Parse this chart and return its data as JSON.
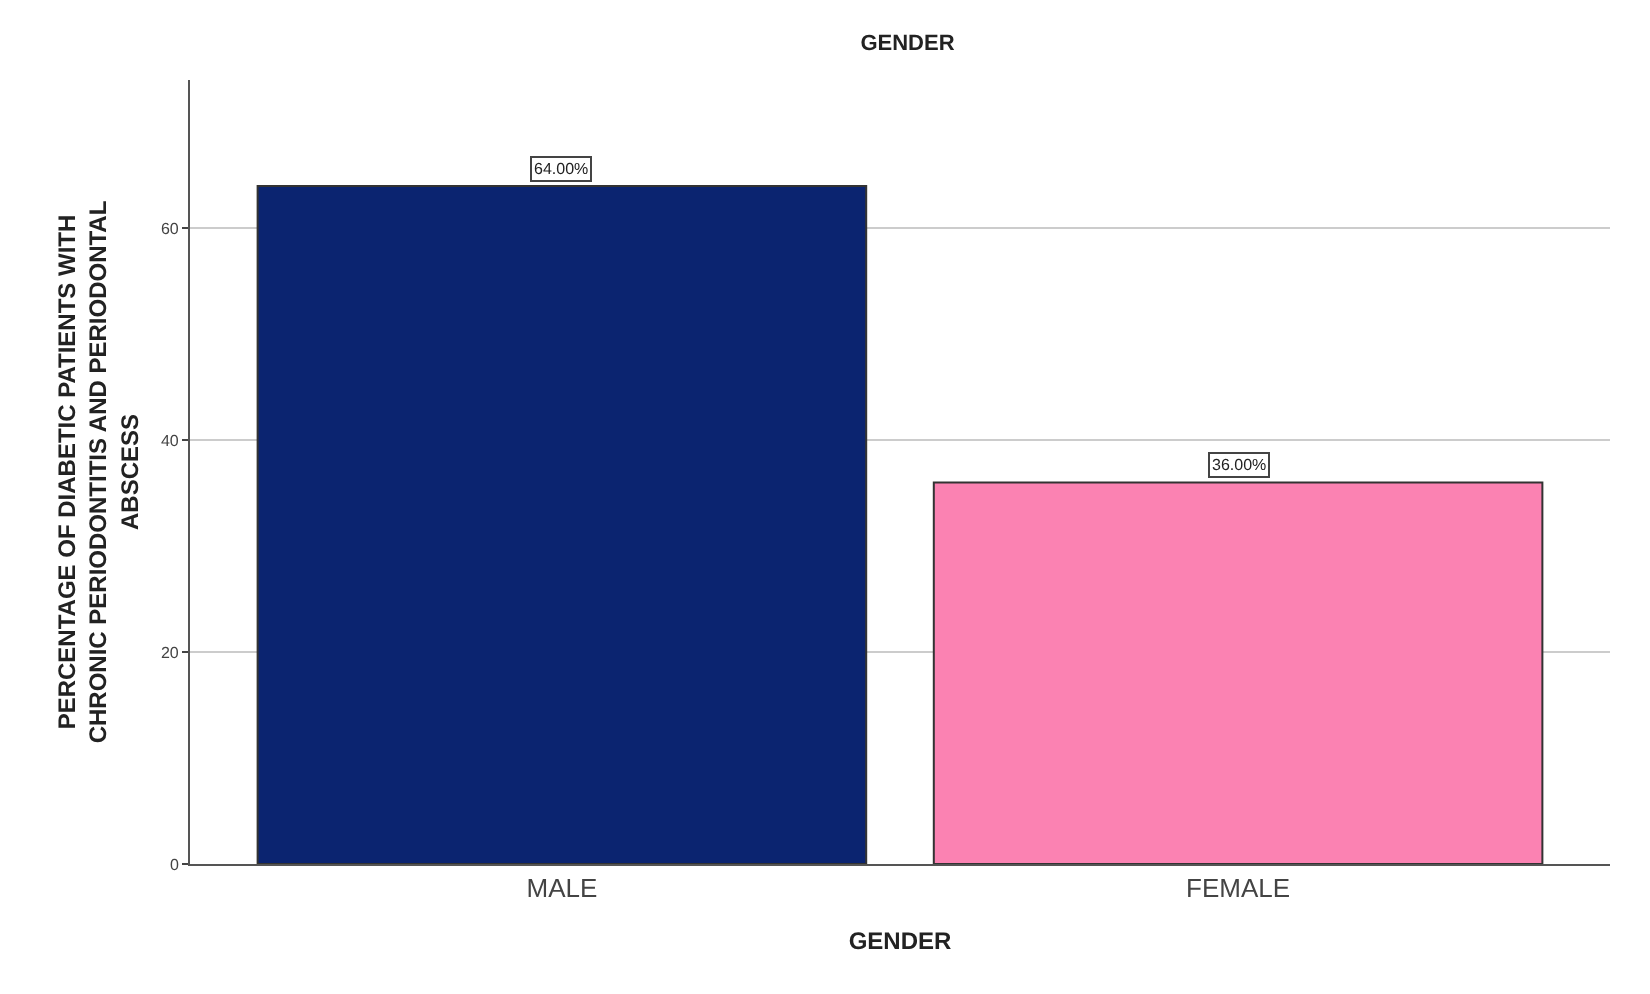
{
  "chart_data": {
    "type": "bar",
    "title": "GENDER",
    "xlabel": "GENDER",
    "ylabel": "PERCENTAGE OF DIABETIC PATIENTS WITH\nCHRONIC PERIODONTITIS AND PERIODONTAL\nABSCESS",
    "categories": [
      "MALE",
      "FEMALE"
    ],
    "values": [
      64,
      36
    ],
    "colors": [
      "#0b2470",
      "#fb82b2"
    ],
    "value_labels": [
      "64.00%",
      "36.00%"
    ],
    "ylim": [
      0,
      74
    ],
    "yticks": [
      0,
      20,
      40,
      60
    ],
    "grid": "y",
    "legend": false
  }
}
